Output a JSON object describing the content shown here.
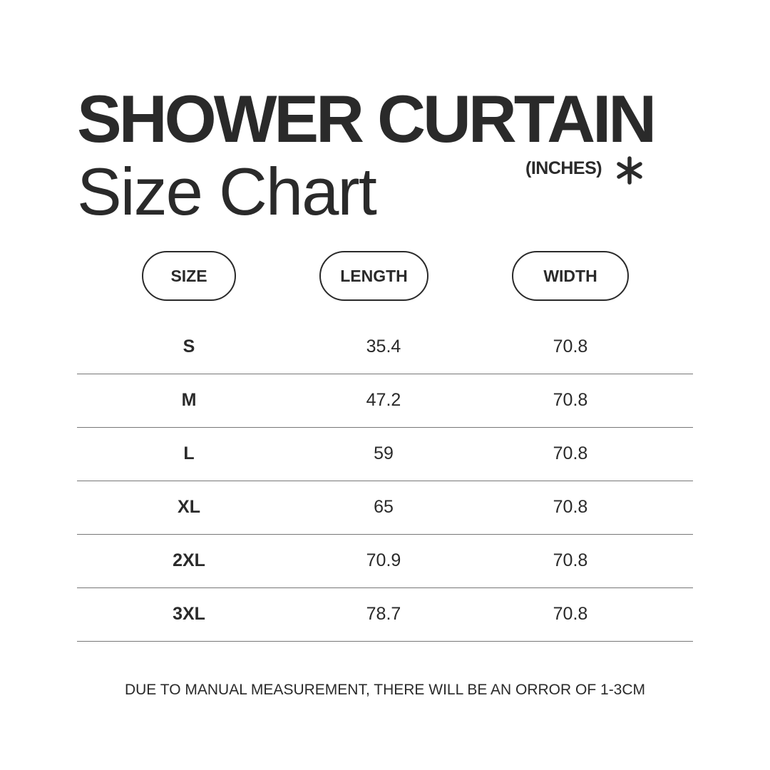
{
  "header": {
    "title": "SHOWER CURTAIN",
    "subtitle": "Size Chart",
    "units": "(INCHES)",
    "units_icon": "asterisk-icon"
  },
  "table": {
    "columns": [
      "SIZE",
      "LENGTH",
      "WIDTH"
    ],
    "rows": [
      {
        "size": "S",
        "length": "35.4",
        "width": "70.8"
      },
      {
        "size": "M",
        "length": "47.2",
        "width": "70.8"
      },
      {
        "size": "L",
        "length": "59",
        "width": "70.8"
      },
      {
        "size": "XL",
        "length": "65",
        "width": "70.8"
      },
      {
        "size": "2XL",
        "length": "70.9",
        "width": "70.8"
      },
      {
        "size": "3XL",
        "length": "78.7",
        "width": "70.8"
      }
    ]
  },
  "footer": {
    "note": "DUE TO MANUAL MEASUREMENT, THERE WILL BE AN ORROR OF 1-3CM"
  },
  "colors": {
    "text": "#2a2a2a",
    "divider": "#777777",
    "background": "#ffffff"
  }
}
